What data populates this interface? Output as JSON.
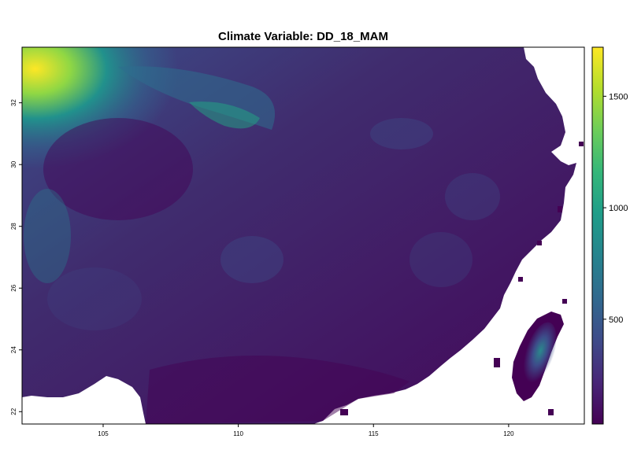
{
  "title": "Climate Variable: DD_18_MAM",
  "map": {
    "xaxis": {
      "ticks": [
        105,
        110,
        115,
        120
      ],
      "labels": [
        "105",
        "110",
        "115",
        "120"
      ],
      "range": [
        102.0,
        122.8
      ]
    },
    "yaxis": {
      "ticks": [
        22,
        24,
        26,
        28,
        30,
        32
      ],
      "labels": [
        "22",
        "24",
        "26",
        "28",
        "30",
        "32"
      ],
      "range": [
        21.6,
        33.8
      ]
    }
  },
  "legend": {
    "ticks": [
      500,
      1000,
      1500
    ],
    "labels": [
      "500",
      "1000",
      "1500"
    ],
    "range": [
      30,
      1720
    ],
    "colors": [
      "#440154",
      "#482677",
      "#3e4a89",
      "#31688e",
      "#26828e",
      "#1f9e89",
      "#35b779",
      "#6dcd59",
      "#b4de2c",
      "#fde725"
    ]
  }
}
